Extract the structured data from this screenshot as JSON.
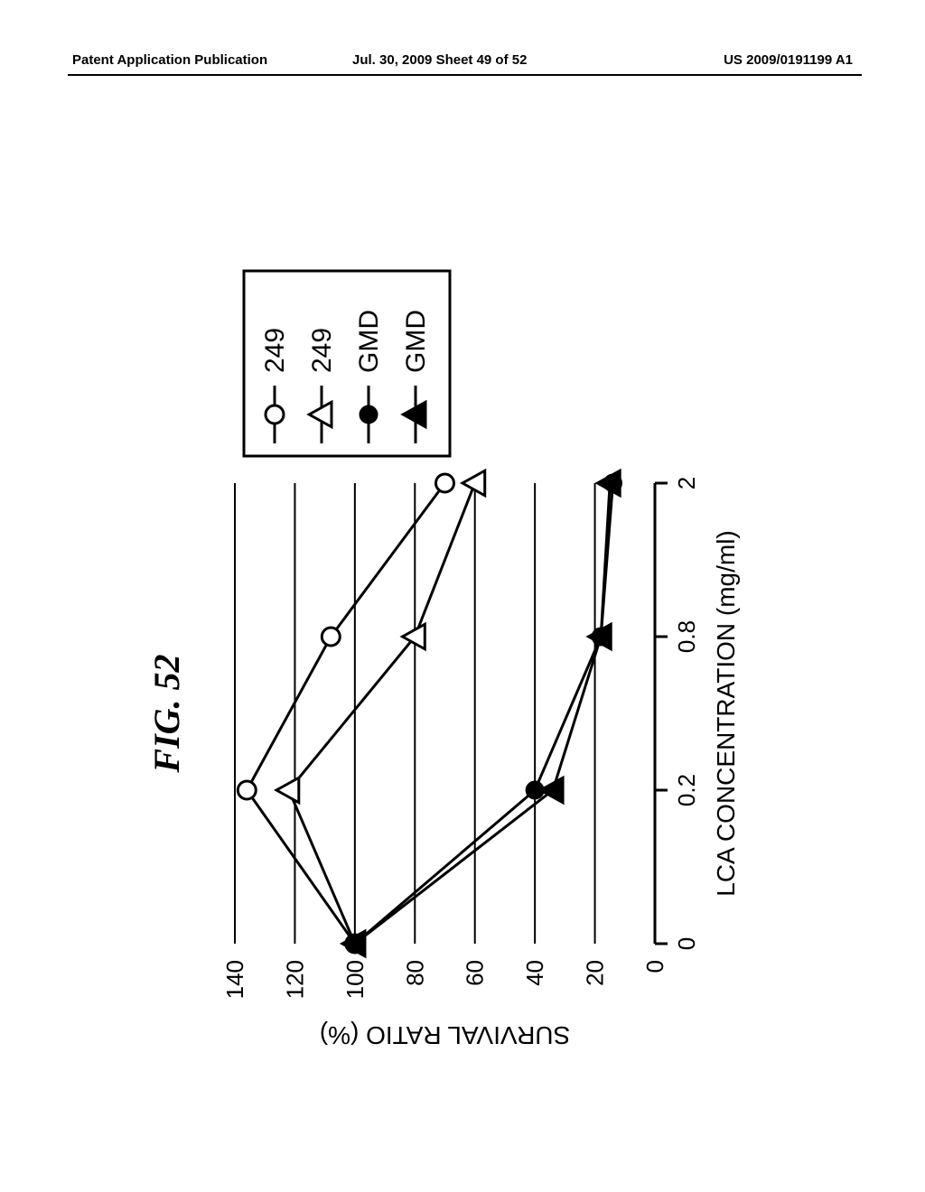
{
  "header": {
    "left": "Patent Application Publication",
    "center": "Jul. 30, 2009  Sheet 49 of 52",
    "right": "US 2009/0191199 A1"
  },
  "figure": {
    "title": "FIG. 52",
    "title_fontsize": 40,
    "title_fontstyle": "italic",
    "title_fontweight": "bold",
    "background_color": "#ffffff",
    "axis_color": "#000000",
    "axis_linewidth": 3,
    "grid_color": "#000000",
    "grid_linewidth": 2,
    "font_family": "Arial",
    "x_axis": {
      "label": "LCA CONCENTRATION (mg/ml)",
      "label_fontsize": 28,
      "ticks": [
        0,
        0.2,
        0.8,
        2
      ],
      "tick_fontsize": 26
    },
    "y_axis": {
      "label": "SURVIVAL RATIO (%)",
      "label_fontsize": 28,
      "min": 0,
      "max": 140,
      "tick_step": 20,
      "tick_fontsize": 26
    },
    "series": [
      {
        "id": "s1",
        "label": "249",
        "marker": "open-circle",
        "marker_size": 10,
        "line_color": "#000000",
        "line_width": 3,
        "fill": "#ffffff",
        "data": [
          {
            "x": 0,
            "y": 100
          },
          {
            "x": 0.2,
            "y": 136
          },
          {
            "x": 0.8,
            "y": 108
          },
          {
            "x": 2,
            "y": 70
          }
        ]
      },
      {
        "id": "s2",
        "label": "249",
        "marker": "open-triangle",
        "marker_size": 11,
        "line_color": "#000000",
        "line_width": 3,
        "fill": "#ffffff",
        "data": [
          {
            "x": 0,
            "y": 100
          },
          {
            "x": 0.2,
            "y": 122
          },
          {
            "x": 0.8,
            "y": 80
          },
          {
            "x": 2,
            "y": 60
          }
        ]
      },
      {
        "id": "s3",
        "label": "GMD",
        "marker": "filled-circle",
        "marker_size": 9,
        "line_color": "#000000",
        "line_width": 3,
        "fill": "#000000",
        "data": [
          {
            "x": 0,
            "y": 100
          },
          {
            "x": 0.2,
            "y": 40
          },
          {
            "x": 0.8,
            "y": 18
          },
          {
            "x": 2,
            "y": 14
          }
        ]
      },
      {
        "id": "s4",
        "label": "GMD",
        "marker": "filled-triangle",
        "marker_size": 11,
        "line_color": "#000000",
        "line_width": 3,
        "fill": "#000000",
        "data": [
          {
            "x": 0,
            "y": 100
          },
          {
            "x": 0.2,
            "y": 34
          },
          {
            "x": 0.8,
            "y": 18
          },
          {
            "x": 2,
            "y": 15
          }
        ]
      }
    ],
    "legend": {
      "border_color": "#000000",
      "border_width": 3,
      "fontsize": 30
    }
  }
}
